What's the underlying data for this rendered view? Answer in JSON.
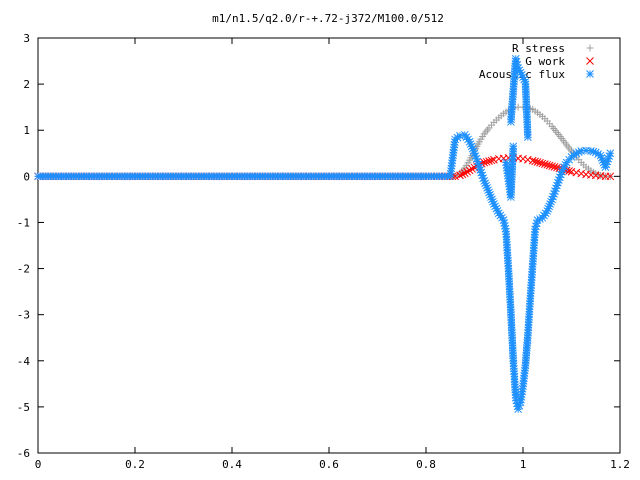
{
  "chart_data": {
    "type": "scatter",
    "title": "m1/n1.5/q2.0/r-+.72-j372/M100.0/512",
    "xlim": [
      0,
      1.2
    ],
    "ylim": [
      -6,
      3
    ],
    "xticks": [
      "0",
      "0.2",
      "0.4",
      "0.6",
      "0.8",
      "1",
      "1.2"
    ],
    "yticks": [
      "3",
      "2",
      "1",
      "0",
      "-1",
      "-2",
      "-3",
      "-4",
      "-5",
      "-6"
    ],
    "grid": false,
    "legend_position": "top-right",
    "series": [
      {
        "name": "R stress",
        "marker": "plus",
        "color": "#a0a0a0",
        "points": [
          [
            0.0,
            0.0
          ],
          [
            0.1,
            0.0
          ],
          [
            0.2,
            0.0
          ],
          [
            0.3,
            0.0
          ],
          [
            0.4,
            0.0
          ],
          [
            0.5,
            0.0
          ],
          [
            0.6,
            0.0
          ],
          [
            0.7,
            0.0
          ],
          [
            0.8,
            0.0
          ],
          [
            0.86,
            0.0
          ],
          [
            0.87,
            0.05
          ],
          [
            0.88,
            0.18
          ],
          [
            0.89,
            0.35
          ],
          [
            0.9,
            0.55
          ],
          [
            0.91,
            0.75
          ],
          [
            0.92,
            0.92
          ],
          [
            0.93,
            1.05
          ],
          [
            0.94,
            1.17
          ],
          [
            0.95,
            1.27
          ],
          [
            0.96,
            1.36
          ],
          [
            0.97,
            1.43
          ],
          [
            0.98,
            1.48
          ],
          [
            0.99,
            1.5
          ],
          [
            1.0,
            1.5
          ],
          [
            1.01,
            1.49
          ],
          [
            1.02,
            1.45
          ],
          [
            1.03,
            1.38
          ],
          [
            1.04,
            1.3
          ],
          [
            1.05,
            1.2
          ],
          [
            1.06,
            1.08
          ],
          [
            1.07,
            0.95
          ],
          [
            1.08,
            0.82
          ],
          [
            1.09,
            0.68
          ],
          [
            1.1,
            0.55
          ],
          [
            1.11,
            0.42
          ],
          [
            1.12,
            0.3
          ],
          [
            1.13,
            0.2
          ],
          [
            1.14,
            0.12
          ],
          [
            1.15,
            0.06
          ],
          [
            1.16,
            0.02
          ],
          [
            1.17,
            0.0
          ],
          [
            1.18,
            0.0
          ]
        ]
      },
      {
        "name": "G work",
        "marker": "cross",
        "color": "#ff0000",
        "points": [
          [
            0.0,
            0.0
          ],
          [
            0.1,
            0.0
          ],
          [
            0.2,
            0.0
          ],
          [
            0.3,
            0.0
          ],
          [
            0.4,
            0.0
          ],
          [
            0.5,
            0.0
          ],
          [
            0.6,
            0.0
          ],
          [
            0.7,
            0.0
          ],
          [
            0.8,
            0.0
          ],
          [
            0.86,
            0.0
          ],
          [
            0.87,
            0.02
          ],
          [
            0.88,
            0.07
          ],
          [
            0.89,
            0.13
          ],
          [
            0.9,
            0.19
          ],
          [
            0.91,
            0.25
          ],
          [
            0.92,
            0.3
          ],
          [
            0.93,
            0.33
          ],
          [
            0.94,
            0.36
          ],
          [
            0.95,
            0.38
          ],
          [
            0.96,
            0.39
          ],
          [
            0.97,
            0.4
          ],
          [
            0.98,
            0.4
          ],
          [
            0.99,
            0.39
          ],
          [
            1.0,
            0.38
          ],
          [
            1.01,
            0.36
          ],
          [
            1.02,
            0.34
          ],
          [
            1.03,
            0.31
          ],
          [
            1.04,
            0.28
          ],
          [
            1.05,
            0.25
          ],
          [
            1.06,
            0.22
          ],
          [
            1.07,
            0.19
          ],
          [
            1.08,
            0.16
          ],
          [
            1.09,
            0.13
          ],
          [
            1.1,
            0.1
          ],
          [
            1.11,
            0.08
          ],
          [
            1.12,
            0.06
          ],
          [
            1.13,
            0.04
          ],
          [
            1.14,
            0.03
          ],
          [
            1.15,
            0.02
          ],
          [
            1.16,
            0.01
          ],
          [
            1.17,
            0.0
          ],
          [
            1.18,
            0.0
          ]
        ]
      },
      {
        "name": "Acoustic flux",
        "marker": "star",
        "color": "#1e90ff",
        "points": [
          [
            0.0,
            0.0
          ],
          [
            0.1,
            0.0
          ],
          [
            0.2,
            0.0
          ],
          [
            0.3,
            0.0
          ],
          [
            0.4,
            0.0
          ],
          [
            0.5,
            0.0
          ],
          [
            0.6,
            0.0
          ],
          [
            0.7,
            0.0
          ],
          [
            0.8,
            0.0
          ],
          [
            0.85,
            0.0
          ],
          [
            0.86,
            0.8
          ],
          [
            0.87,
            0.88
          ],
          [
            0.88,
            0.9
          ],
          [
            0.89,
            0.75
          ],
          [
            0.9,
            0.5
          ],
          [
            0.91,
            0.2
          ],
          [
            0.92,
            -0.1
          ],
          [
            0.93,
            -0.35
          ],
          [
            0.94,
            -0.6
          ],
          [
            0.95,
            -0.8
          ],
          [
            0.96,
            -0.95
          ],
          [
            0.965,
            -1.2
          ],
          [
            0.97,
            -2.0
          ],
          [
            0.975,
            -2.95
          ],
          [
            0.98,
            -4.0
          ],
          [
            0.985,
            -4.8
          ],
          [
            0.99,
            -5.05
          ],
          [
            0.995,
            -4.9
          ],
          [
            1.0,
            -4.55
          ],
          [
            1.005,
            -4.1
          ],
          [
            1.01,
            -3.45
          ],
          [
            1.015,
            -2.65
          ],
          [
            1.02,
            -1.9
          ],
          [
            1.025,
            -1.15
          ],
          [
            1.03,
            -0.95
          ],
          [
            1.04,
            -0.9
          ],
          [
            1.05,
            -0.75
          ],
          [
            1.06,
            -0.5
          ],
          [
            1.07,
            -0.2
          ],
          [
            1.08,
            0.1
          ],
          [
            1.09,
            0.3
          ],
          [
            1.1,
            0.42
          ],
          [
            1.11,
            0.5
          ],
          [
            1.12,
            0.55
          ],
          [
            1.13,
            0.56
          ],
          [
            1.14,
            0.55
          ],
          [
            1.15,
            0.52
          ],
          [
            1.16,
            0.45
          ],
          [
            1.17,
            0.2
          ],
          [
            1.18,
            0.5
          ],
          [
            0.975,
            1.18
          ],
          [
            0.985,
            2.55
          ],
          [
            0.99,
            2.35
          ],
          [
            1.005,
            2.05
          ],
          [
            1.01,
            0.85
          ],
          [
            0.965,
            0.3
          ],
          [
            0.975,
            -0.45
          ],
          [
            0.98,
            0.65
          ]
        ]
      }
    ]
  }
}
